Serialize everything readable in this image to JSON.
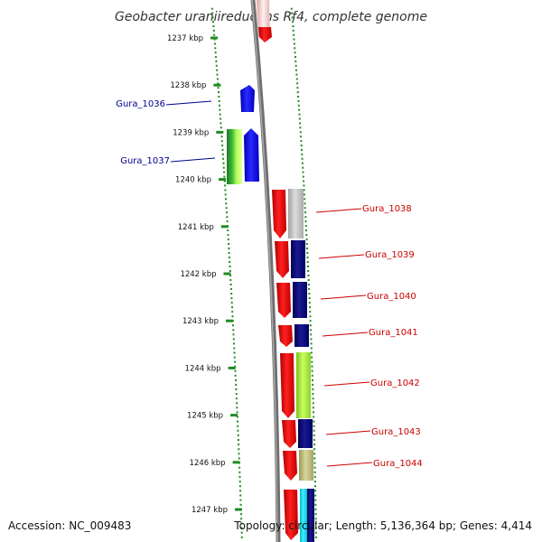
{
  "title": "Geobacter uraniireducens Rf4, complete genome",
  "accession": "Accession: NC_009483",
  "topology": "Topology: circular; Length: 5,136,364 bp; Genes: 4,414",
  "colors": {
    "label_left": "#00008b",
    "label_right": "#cc0000",
    "tick": "#228b22",
    "backbone": "#8c8c8c"
  },
  "tick_labels": [
    "1237 kbp",
    "1238 kbp",
    "1239 kbp",
    "1240 kbp",
    "1241 kbp",
    "1242 kbp",
    "1243 kbp",
    "1244 kbp",
    "1245 kbp",
    "1246 kbp",
    "1247 kbp"
  ],
  "genes": [
    {
      "name": "Gura_1036",
      "side": "left"
    },
    {
      "name": "Gura_1037",
      "side": "left"
    },
    {
      "name": "Gura_1038",
      "side": "right"
    },
    {
      "name": "Gura_1039",
      "side": "right"
    },
    {
      "name": "Gura_1040",
      "side": "right"
    },
    {
      "name": "Gura_1041",
      "side": "right"
    },
    {
      "name": "Gura_1042",
      "side": "right"
    },
    {
      "name": "Gura_1043",
      "side": "right"
    },
    {
      "name": "Gura_1044",
      "side": "right"
    }
  ]
}
